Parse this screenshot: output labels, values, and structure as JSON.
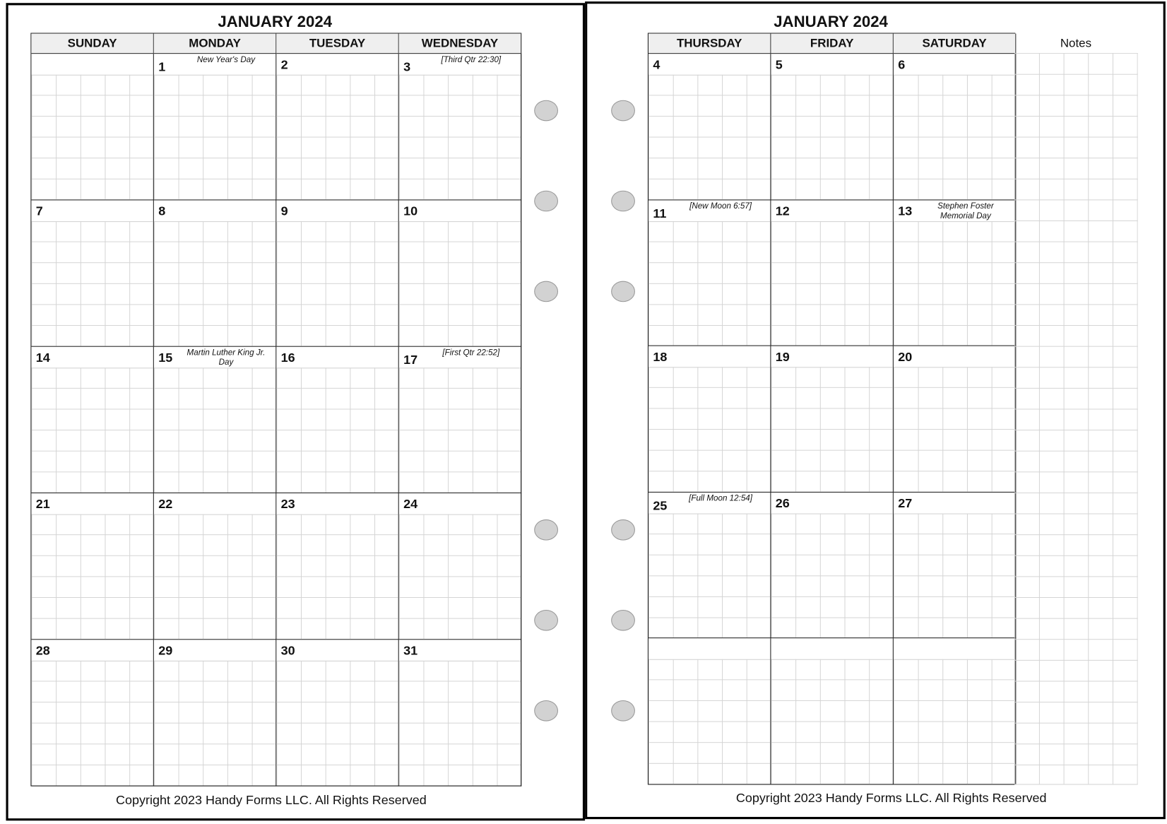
{
  "left_page": {
    "title": "JANUARY 2024",
    "days": [
      "SUNDAY",
      "MONDAY",
      "TUESDAY",
      "WEDNESDAY"
    ],
    "weeks": [
      [
        {
          "date": "",
          "event": ""
        },
        {
          "date": "1",
          "event": "New Year's Day"
        },
        {
          "date": "2",
          "event": ""
        },
        {
          "date": "3",
          "event": "[Third Qtr 22:30]"
        }
      ],
      [
        {
          "date": "7",
          "event": ""
        },
        {
          "date": "8",
          "event": ""
        },
        {
          "date": "9",
          "event": ""
        },
        {
          "date": "10",
          "event": ""
        }
      ],
      [
        {
          "date": "14",
          "event": ""
        },
        {
          "date": "15",
          "event": "Martin Luther King Jr. Day"
        },
        {
          "date": "16",
          "event": ""
        },
        {
          "date": "17",
          "event": "[First Qtr 22:52]"
        }
      ],
      [
        {
          "date": "21",
          "event": ""
        },
        {
          "date": "22",
          "event": ""
        },
        {
          "date": "23",
          "event": ""
        },
        {
          "date": "24",
          "event": ""
        }
      ],
      [
        {
          "date": "28",
          "event": ""
        },
        {
          "date": "29",
          "event": ""
        },
        {
          "date": "30",
          "event": ""
        },
        {
          "date": "31",
          "event": ""
        }
      ]
    ],
    "copyright": "Copyright 2023 Handy Forms LLC. All Rights Reserved"
  },
  "right_page": {
    "title": "JANUARY 2024",
    "days": [
      "THURSDAY",
      "FRIDAY",
      "SATURDAY"
    ],
    "notes_label": "Notes",
    "weeks": [
      [
        {
          "date": "4",
          "event": ""
        },
        {
          "date": "5",
          "event": ""
        },
        {
          "date": "6",
          "event": ""
        }
      ],
      [
        {
          "date": "11",
          "event": "[New Moon 6:57]"
        },
        {
          "date": "12",
          "event": ""
        },
        {
          "date": "13",
          "event": "Stephen Foster Memorial Day"
        }
      ],
      [
        {
          "date": "18",
          "event": ""
        },
        {
          "date": "19",
          "event": ""
        },
        {
          "date": "20",
          "event": ""
        }
      ],
      [
        {
          "date": "25",
          "event": "[Full Moon 12:54]"
        },
        {
          "date": "26",
          "event": ""
        },
        {
          "date": "27",
          "event": ""
        }
      ],
      [
        {
          "date": "",
          "event": ""
        },
        {
          "date": "",
          "event": ""
        },
        {
          "date": "",
          "event": ""
        }
      ]
    ],
    "copyright": "Copyright 2023 Handy Forms LLC. All Rights Reserved"
  },
  "colors": {
    "header_bg": "#efefef",
    "grid_line": "#d4d4d4",
    "hole": "#d2d2d2"
  }
}
